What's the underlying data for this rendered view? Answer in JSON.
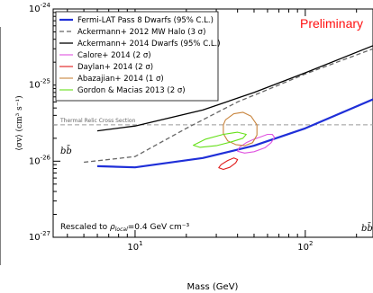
{
  "chart_data": {
    "type": "line",
    "title": "",
    "annotation_top_right": "Preliminary",
    "xlabel": "Mass (GeV)",
    "ylabel": "⟨σv⟩ (cm³ s⁻¹)",
    "x_scale": "log",
    "y_scale": "log",
    "xlim": [
      3.3,
      250
    ],
    "ylim": [
      1e-27,
      1e-24
    ],
    "x_ticks": [
      {
        "value": 10,
        "base": "10",
        "exp": "1"
      },
      {
        "value": 100,
        "base": "10",
        "exp": "2"
      }
    ],
    "y_ticks": [
      {
        "value": 1e-24,
        "base": "10",
        "exp": "-24"
      },
      {
        "value": 1e-25,
        "base": "10",
        "exp": "-25"
      },
      {
        "value": 1e-26,
        "base": "10",
        "exp": "-26"
      },
      {
        "value": 1e-27,
        "base": "10",
        "exp": "-27"
      }
    ],
    "thermal_relic": {
      "label": "Thermal Relic Cross Section",
      "value": 3e-26,
      "color": "#999999"
    },
    "channel_labels": {
      "left": "bb̄",
      "right": "bb̄"
    },
    "footnote": {
      "prefix": "Rescaled to ",
      "symbol": "ρ",
      "subscript": "local",
      "suffix": "=0.4 GeV cm⁻³"
    },
    "series": [
      {
        "name": "Fermi-LAT Pass 8 Dwarfs (95% C.L.)",
        "style": "line",
        "color": "#1f2fd8",
        "width": 2.2,
        "dash": "",
        "x": [
          6,
          10,
          25,
          50,
          100,
          250
        ],
        "y": [
          8.6e-27,
          8.3e-27,
          1.1e-26,
          1.6e-26,
          2.7e-26,
          6.5e-26
        ]
      },
      {
        "name": "Ackermann+ 2012 MW Halo (3 σ)",
        "style": "line",
        "color": "#666666",
        "width": 1.3,
        "dash": "5,3",
        "x": [
          5,
          10,
          20,
          40,
          60,
          100,
          250
        ],
        "y": [
          9.7e-27,
          1.15e-26,
          2.7e-26,
          6e-26,
          8.7e-26,
          1.4e-25,
          3e-25
        ]
      },
      {
        "name": "Ackermann+ 2014 Dwarfs (95% C.L.)",
        "style": "line",
        "color": "#000000",
        "width": 1.3,
        "dash": "",
        "x": [
          6,
          10,
          25,
          50,
          100,
          250
        ],
        "y": [
          2.5e-26,
          2.9e-26,
          4.7e-26,
          8e-26,
          1.45e-25,
          3.3e-25
        ]
      },
      {
        "name": "Calore+ 2014 (2 σ)",
        "style": "contour",
        "color": "#e054e0",
        "width": 1.1,
        "dash": "",
        "x": [
          40,
          44,
          50,
          58,
          63,
          66,
          64,
          60,
          55,
          50,
          45,
          41,
          40
        ],
        "y": [
          1.35e-26,
          1.28e-26,
          1.33e-26,
          1.5e-26,
          1.75e-26,
          2.05e-26,
          2.25e-26,
          2.25e-26,
          2.1e-26,
          1.95e-26,
          1.75e-26,
          1.52e-26,
          1.35e-26
        ]
      },
      {
        "name": "Daylan+ 2014 (2 σ)",
        "style": "contour",
        "color": "#e01a1a",
        "width": 1.1,
        "dash": "",
        "x": [
          31,
          33,
          36,
          39,
          40,
          38,
          35,
          32,
          31
        ],
        "y": [
          8.2e-27,
          7.8e-27,
          8.3e-27,
          9.5e-27,
          1.05e-26,
          1.1e-26,
          1.02e-26,
          9e-27,
          8.2e-27
        ]
      },
      {
        "name": "Abazajian+ 2014 (1 σ)",
        "style": "contour",
        "color": "#c8843c",
        "width": 1.1,
        "dash": "",
        "x": [
          34,
          38,
          43,
          48,
          52,
          52,
          49,
          44,
          39,
          35,
          33,
          33,
          34
        ],
        "y": [
          3.5e-26,
          4.2e-26,
          4.4e-26,
          3.9e-26,
          3e-26,
          2.2e-26,
          1.75e-26,
          1.6e-26,
          1.65e-26,
          1.85e-26,
          2.3e-26,
          3e-26,
          3.5e-26
        ]
      },
      {
        "name": "Gordon & Macias 2013 (2 σ)",
        "style": "contour",
        "color": "#66e01a",
        "width": 1.1,
        "dash": "",
        "x": [
          22,
          26,
          33,
          40,
          45,
          43,
          37,
          30,
          24,
          22
        ],
        "y": [
          1.62e-26,
          1.95e-26,
          2.25e-26,
          2.4e-26,
          2.25e-26,
          2e-26,
          1.8e-26,
          1.6e-26,
          1.52e-26,
          1.62e-26
        ]
      }
    ],
    "grid": false,
    "legend_position": "top-left"
  }
}
